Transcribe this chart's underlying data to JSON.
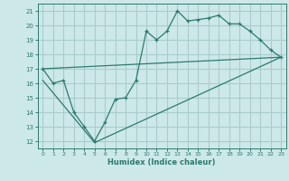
{
  "title": "",
  "xlabel": "Humidex (Indice chaleur)",
  "bg_color": "#cce8e8",
  "grid_color": "#aacccc",
  "line_color": "#2d7a6e",
  "xlim": [
    -0.5,
    23.5
  ],
  "ylim": [
    11.5,
    21.5
  ],
  "xticks": [
    0,
    1,
    2,
    3,
    4,
    5,
    6,
    7,
    8,
    9,
    10,
    11,
    12,
    13,
    14,
    15,
    16,
    17,
    18,
    19,
    20,
    21,
    22,
    23
  ],
  "yticks": [
    12,
    13,
    14,
    15,
    16,
    17,
    18,
    19,
    20,
    21
  ],
  "line1_x": [
    0,
    1,
    2,
    3,
    4,
    5,
    6,
    7,
    8,
    9,
    10,
    11,
    12,
    13,
    14,
    15,
    16,
    17,
    18,
    19,
    20,
    21,
    22,
    23
  ],
  "line1_y": [
    17.0,
    16.0,
    16.2,
    14.0,
    13.0,
    12.0,
    13.3,
    14.9,
    15.0,
    16.2,
    19.6,
    19.0,
    19.6,
    21.0,
    20.3,
    20.4,
    20.5,
    20.7,
    20.1,
    20.1,
    19.6,
    19.0,
    18.3,
    17.8
  ],
  "line2_x": [
    0,
    23
  ],
  "line2_y": [
    17.0,
    17.8
  ],
  "line3_x": [
    0,
    5,
    23
  ],
  "line3_y": [
    16.2,
    11.9,
    17.8
  ]
}
